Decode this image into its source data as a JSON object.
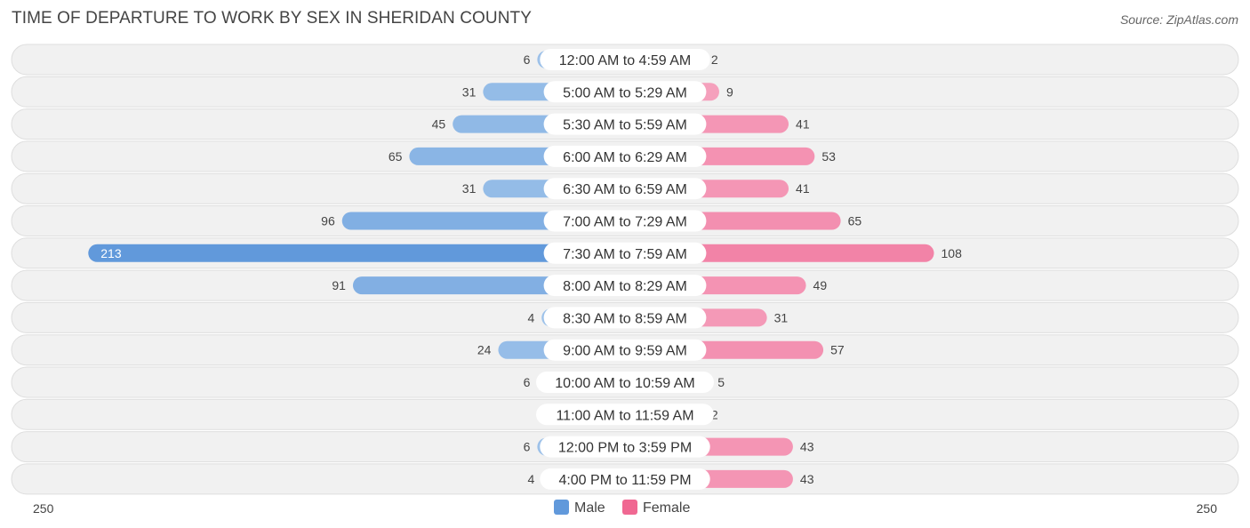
{
  "header": {
    "title": "TIME OF DEPARTURE TO WORK BY SEX IN SHERIDAN COUNTY",
    "source": "Source: ZipAtlas.com"
  },
  "colors": {
    "male": "#9fc3ea",
    "male_strong": "#6199db",
    "female": "#f5a3bf",
    "female_strong": "#f06892"
  },
  "chart_data": {
    "type": "bar",
    "orientation": "horizontal-diverging",
    "title": "TIME OF DEPARTURE TO WORK BY SEX IN SHERIDAN COUNTY",
    "categories": [
      "12:00 AM to 4:59 AM",
      "5:00 AM to 5:29 AM",
      "5:30 AM to 5:59 AM",
      "6:00 AM to 6:29 AM",
      "6:30 AM to 6:59 AM",
      "7:00 AM to 7:29 AM",
      "7:30 AM to 7:59 AM",
      "8:00 AM to 8:29 AM",
      "8:30 AM to 8:59 AM",
      "9:00 AM to 9:59 AM",
      "10:00 AM to 10:59 AM",
      "11:00 AM to 11:59 AM",
      "12:00 PM to 3:59 PM",
      "4:00 PM to 11:59 PM"
    ],
    "series": [
      {
        "name": "Male",
        "values": [
          6,
          31,
          45,
          65,
          31,
          96,
          213,
          91,
          4,
          24,
          6,
          0,
          6,
          4
        ]
      },
      {
        "name": "Female",
        "values": [
          2,
          9,
          41,
          53,
          41,
          65,
          108,
          49,
          31,
          57,
          5,
          2,
          43,
          43
        ]
      }
    ],
    "axis": {
      "left_label": "250",
      "right_label": "250",
      "max": 250
    },
    "legend": {
      "position": "bottom-center",
      "entries": [
        "Male",
        "Female"
      ]
    }
  }
}
